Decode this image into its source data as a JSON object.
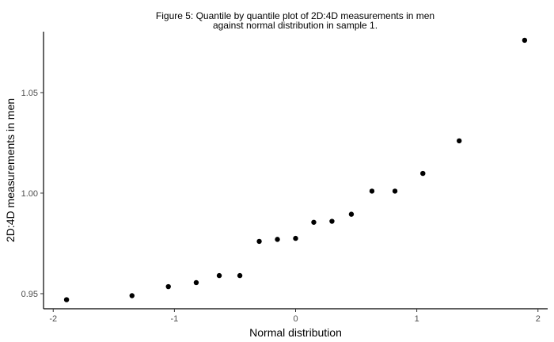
{
  "chart_data": {
    "type": "scatter",
    "title": [
      "Figure 5: Quantile by quantile plot of 2D:4D measurements in men",
      "against normal distribution in sample 1."
    ],
    "xlabel": "Normal distribution",
    "ylabel": "2D:4D measurements in men",
    "xlim": [
      -2.08,
      2.08
    ],
    "ylim": [
      0.9425,
      1.0803
    ],
    "x_ticks": [
      -2,
      -1,
      0,
      1,
      2
    ],
    "x_tick_labels": [
      "-2",
      "-1",
      "0",
      "1",
      "2"
    ],
    "y_ticks": [
      0.95,
      1.0,
      1.05
    ],
    "y_tick_labels": [
      "0.95",
      "1.00",
      "1.05"
    ],
    "grid": false,
    "point_color": "#000000",
    "points": [
      {
        "x": -1.89,
        "y": 0.947
      },
      {
        "x": -1.35,
        "y": 0.949
      },
      {
        "x": -1.05,
        "y": 0.9535
      },
      {
        "x": -0.82,
        "y": 0.9555
      },
      {
        "x": -0.63,
        "y": 0.959
      },
      {
        "x": -0.46,
        "y": 0.959
      },
      {
        "x": -0.3,
        "y": 0.976
      },
      {
        "x": -0.15,
        "y": 0.977
      },
      {
        "x": 0.0,
        "y": 0.9775
      },
      {
        "x": 0.15,
        "y": 0.9855
      },
      {
        "x": 0.3,
        "y": 0.986
      },
      {
        "x": 0.46,
        "y": 0.9895
      },
      {
        "x": 0.63,
        "y": 1.001
      },
      {
        "x": 0.82,
        "y": 1.001
      },
      {
        "x": 1.05,
        "y": 1.0098
      },
      {
        "x": 1.35,
        "y": 1.026
      },
      {
        "x": 1.89,
        "y": 1.076
      }
    ]
  }
}
